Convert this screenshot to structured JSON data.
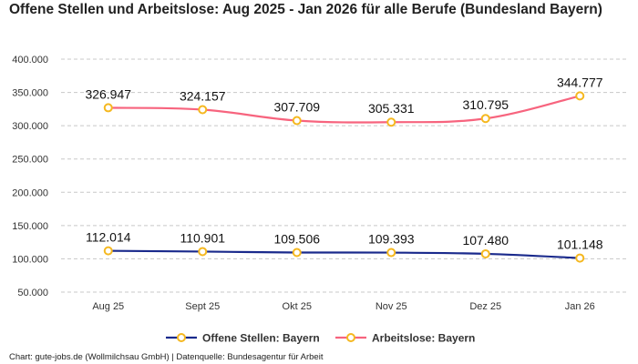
{
  "chart_data": {
    "type": "line",
    "title": "Offene Stellen und Arbeitslose: Aug 2025 - Jan 2026 für alle Berufe (Bundesland Bayern)",
    "categories": [
      "Aug 25",
      "Sept 25",
      "Okt 25",
      "Nov 25",
      "Dez 25",
      "Jan 26"
    ],
    "series": [
      {
        "name": "Offene Stellen: Bayern",
        "color": "#1a2a8c",
        "values": [
          112014,
          110901,
          109506,
          109393,
          107480,
          101148
        ],
        "labels": [
          "112.014",
          "110.901",
          "109.506",
          "109.393",
          "107.480",
          "101.148"
        ]
      },
      {
        "name": "Arbeitslose: Bayern",
        "color": "#f7647e",
        "values": [
          326947,
          324157,
          307709,
          305331,
          310795,
          344777
        ],
        "labels": [
          "326.947",
          "324.157",
          "307.709",
          "305.331",
          "310.795",
          "344.777"
        ]
      }
    ],
    "marker_color": "#f5b820",
    "ylim": [
      50000,
      400000
    ],
    "yticks": [
      400000,
      350000,
      300000,
      250000,
      200000,
      150000,
      100000,
      50000
    ],
    "ytick_labels": [
      "400.000",
      "350.000",
      "300.000",
      "250.000",
      "200.000",
      "150.000",
      "100.000",
      "50.000"
    ],
    "grid": "horizontal dashed",
    "legend_position": "bottom-center",
    "smooth": true
  },
  "credit": "Chart: gute-jobs.de (Wollmilchsau GmbH) | Datenquelle: Bundesagentur für Arbeit"
}
